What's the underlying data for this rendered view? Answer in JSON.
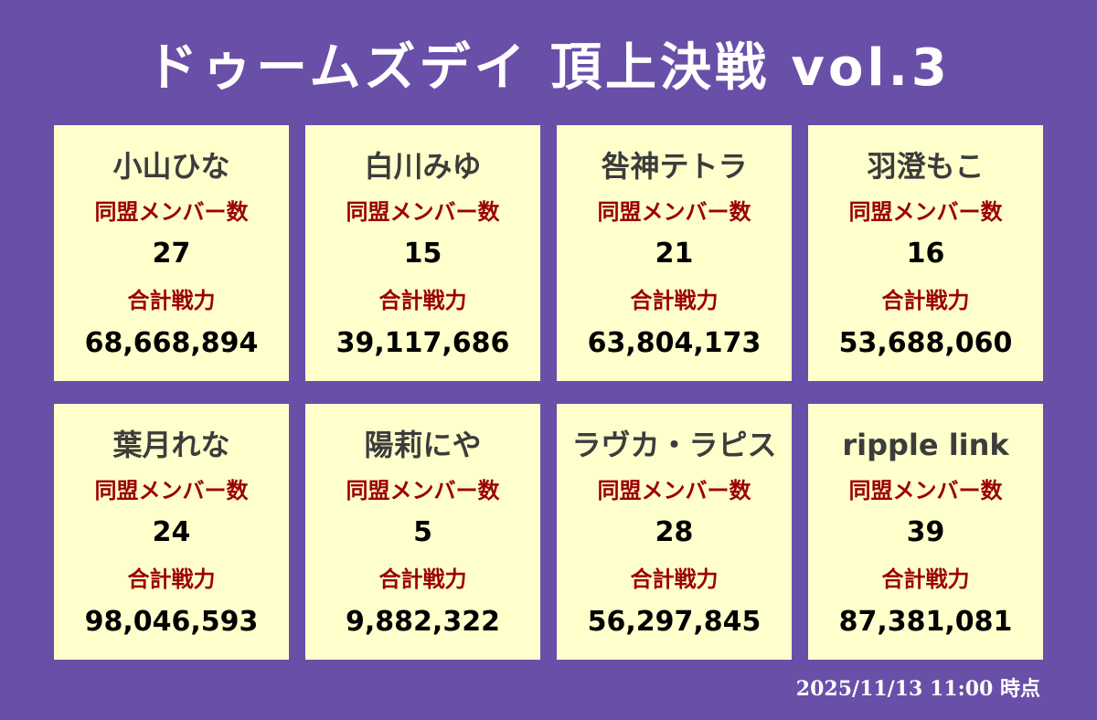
{
  "title": "ドゥームズデイ 頂上決戦 vol.3",
  "labels": {
    "members": "同盟メンバー数",
    "power": "合計戦力"
  },
  "cards": [
    {
      "name": "小山ひな",
      "members": "27",
      "power": "68,668,894"
    },
    {
      "name": "白川みゆ",
      "members": "15",
      "power": "39,117,686"
    },
    {
      "name": "咎神テトラ",
      "members": "21",
      "power": "63,804,173"
    },
    {
      "name": "羽澄もこ",
      "members": "16",
      "power": "53,688,060"
    },
    {
      "name": "葉月れな",
      "members": "24",
      "power": "98,046,593"
    },
    {
      "name": "陽莉にや",
      "members": "5",
      "power": "9,882,322"
    },
    {
      "name": "ラヴカ・ラピス",
      "members": "28",
      "power": "56,297,845"
    },
    {
      "name": "ripple link",
      "members": "39",
      "power": "87,381,081"
    }
  ],
  "timestamp": "2025/11/13 11:00 時点",
  "colors": {
    "background": "#6a4fa8",
    "card": "#ffffcc",
    "label": "#9b0000",
    "name": "#3c3c3c",
    "value": "#000000",
    "title": "#ffffff"
  }
}
